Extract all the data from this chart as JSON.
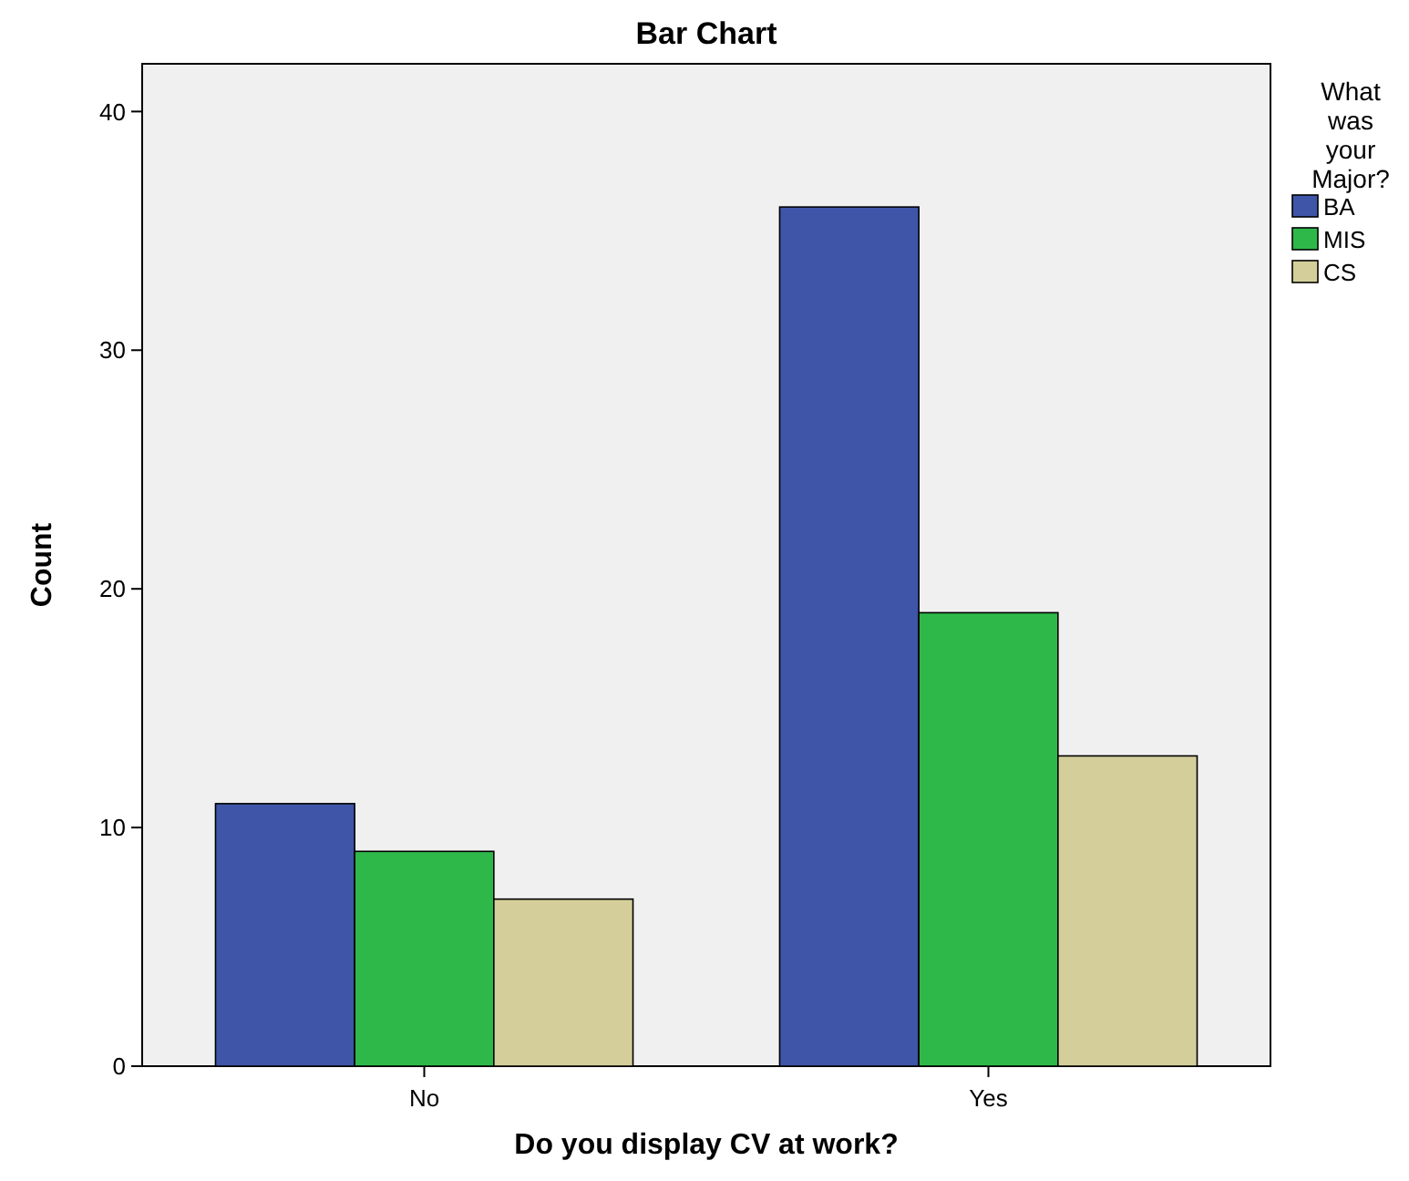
{
  "chart_data": {
    "type": "bar",
    "title": "Bar Chart",
    "xlabel": "Do you display CV at work?",
    "ylabel": "Count",
    "legend_title": "What was your Major?",
    "categories": [
      "No",
      "Yes"
    ],
    "series": [
      {
        "name": "BA",
        "color": "#3f55a8",
        "values": [
          11,
          36
        ]
      },
      {
        "name": "MIS",
        "color": "#2eb84a",
        "values": [
          9,
          19
        ]
      },
      {
        "name": "CS",
        "color": "#d4cf9a",
        "values": [
          7,
          13
        ]
      }
    ],
    "ylim": [
      0,
      42
    ],
    "yticks": [
      0,
      10,
      20,
      30,
      40
    ],
    "grid": false,
    "legend": "right"
  }
}
